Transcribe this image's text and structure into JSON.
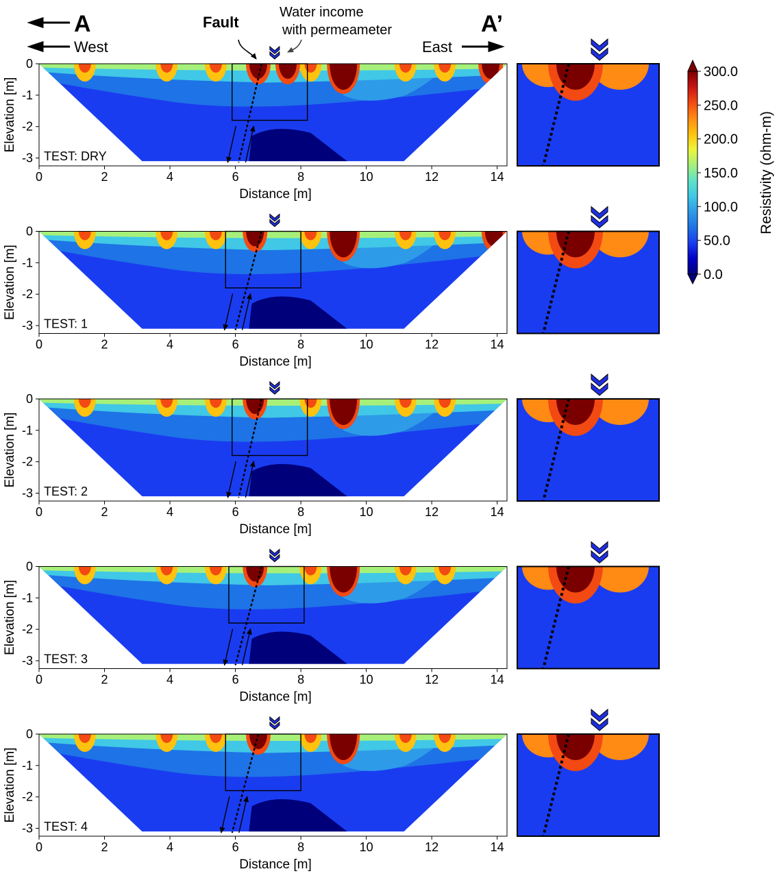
{
  "header": {
    "left_letter": "A",
    "right_letter": "A’",
    "west_label": "West",
    "east_label": "East",
    "fault_label": "Fault",
    "water_label_line1": "Water income",
    "water_label_line2": "with permeameter"
  },
  "colorbar": {
    "label": "Resistivity (ohm-m)",
    "tick_labels": [
      "300.0",
      "250.0",
      "200.0",
      "150.0",
      "100.0",
      "50.0",
      "0.0"
    ],
    "colors": [
      "#00007a",
      "#0000c8",
      "#1a3cf0",
      "#1e73e6",
      "#2e9be8",
      "#40c8e6",
      "#5fe3c8",
      "#a6f07a",
      "#eef53a",
      "#ffc20e",
      "#ff8a14",
      "#f24a12",
      "#c81414",
      "#7a0000"
    ]
  },
  "chart_data": [
    {
      "type": "heatmap",
      "test_label": "TEST: DRY",
      "xlabel": "Distance [m]",
      "ylabel": "Elevation [m]",
      "xlim": [
        0,
        14.3
      ],
      "ylim": [
        -3.25,
        0
      ],
      "x_ticks": [
        "0",
        "2",
        "4",
        "6",
        "8",
        "10",
        "12",
        "14"
      ],
      "y_ticks": [
        "0",
        "-1",
        "-2",
        "-3"
      ],
      "fault_line": {
        "x_top": 6.8,
        "x_bottom": 6.1
      },
      "zoom_box": {
        "x": [
          5.9,
          8.2
        ],
        "y": [
          -1.8,
          0
        ]
      },
      "high_resistivity_anomalies_x_m": [
        6.7,
        7.6,
        9.3,
        13.8
      ]
    },
    {
      "type": "heatmap",
      "test_label": "TEST: 1",
      "xlabel": "Distance [m]",
      "ylabel": "Elevation [m]",
      "xlim": [
        0,
        14.3
      ],
      "ylim": [
        -3.25,
        0
      ],
      "x_ticks": [
        "0",
        "2",
        "4",
        "6",
        "8",
        "10",
        "12",
        "14"
      ],
      "y_ticks": [
        "0",
        "-1",
        "-2",
        "-3"
      ],
      "fault_line": {
        "x_top": 6.8,
        "x_bottom": 6.0
      },
      "zoom_box": {
        "x": [
          5.7,
          8.0
        ],
        "y": [
          -1.8,
          0
        ]
      },
      "high_resistivity_anomalies_x_m": [
        6.6,
        9.3,
        13.9
      ]
    },
    {
      "type": "heatmap",
      "test_label": "TEST: 2",
      "xlabel": "Distance [m]",
      "ylabel": "Elevation [m]",
      "xlim": [
        0,
        14.3
      ],
      "ylim": [
        -3.25,
        0
      ],
      "x_ticks": [
        "0",
        "2",
        "4",
        "6",
        "8",
        "10",
        "12",
        "14"
      ],
      "y_ticks": [
        "0",
        "-1",
        "-2",
        "-3"
      ],
      "fault_line": {
        "x_top": 6.8,
        "x_bottom": 6.1
      },
      "zoom_box": {
        "x": [
          5.9,
          8.2
        ],
        "y": [
          -1.8,
          0
        ]
      },
      "high_resistivity_anomalies_x_m": [
        6.6,
        9.3
      ]
    },
    {
      "type": "heatmap",
      "test_label": "TEST: 3",
      "xlabel": "Distance [m]",
      "ylabel": "Elevation [m]",
      "xlim": [
        0,
        14.3
      ],
      "ylim": [
        -3.25,
        0
      ],
      "x_ticks": [
        "0",
        "2",
        "4",
        "6",
        "8",
        "10",
        "12",
        "14"
      ],
      "y_ticks": [
        "0",
        "-1",
        "-2",
        "-3"
      ],
      "fault_line": {
        "x_top": 6.8,
        "x_bottom": 6.0
      },
      "zoom_box": {
        "x": [
          5.8,
          8.1
        ],
        "y": [
          -1.8,
          0
        ]
      },
      "high_resistivity_anomalies_x_m": [
        6.6,
        9.3
      ]
    },
    {
      "type": "heatmap",
      "test_label": "TEST: 4",
      "xlabel": "Distance [m]",
      "ylabel": "Elevation [m]",
      "xlim": [
        0,
        14.3
      ],
      "ylim": [
        -3.25,
        0
      ],
      "x_ticks": [
        "0",
        "2",
        "4",
        "6",
        "8",
        "10",
        "12",
        "14"
      ],
      "y_ticks": [
        "0",
        "-1",
        "-2",
        "-3"
      ],
      "fault_line": {
        "x_top": 6.7,
        "x_bottom": 5.9
      },
      "zoom_box": {
        "x": [
          5.7,
          8.0
        ],
        "y": [
          -1.8,
          0
        ]
      },
      "high_resistivity_anomalies_x_m": [
        6.7,
        9.3
      ]
    }
  ]
}
